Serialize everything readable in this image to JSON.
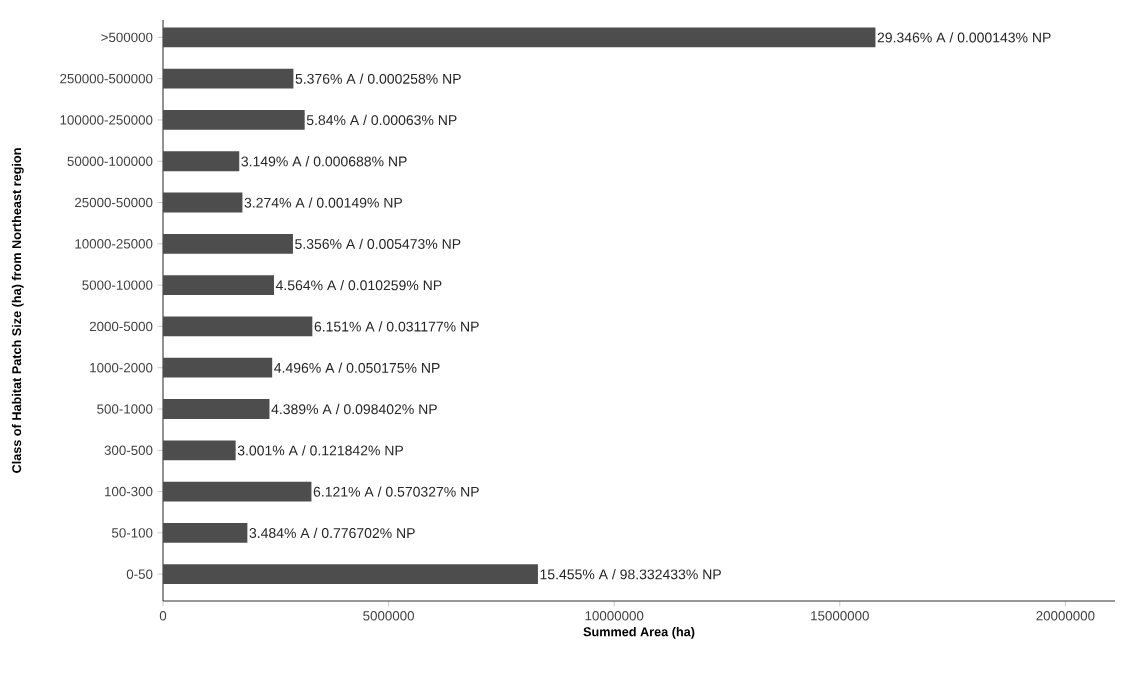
{
  "chart_data": {
    "type": "bar",
    "orientation": "horizontal",
    "xlabel": "Summed Area (ha)",
    "ylabel": "Class of Habitat Patch Size (ha) from Northeast region",
    "categories": [
      ">500000",
      "250000-500000",
      "100000-250000",
      "50000-100000",
      "25000-50000",
      "10000-25000",
      "5000-10000",
      "2000-5000",
      "1000-2000",
      "500-1000",
      "300-500",
      "100-300",
      "50-100",
      "0-50"
    ],
    "values": [
      15790000,
      2890000,
      3140000,
      1690000,
      1760000,
      2880000,
      2460000,
      3310000,
      2420000,
      2360000,
      1610000,
      3290000,
      1870000,
      8310000
    ],
    "annotations": [
      {
        "text": "29.346% A / 0.000143% NP",
        "x": 15790000,
        "y": ">500000"
      },
      {
        "text": "5.376% A / 0.000258% NP",
        "x": 2890000,
        "y": "250000-500000"
      },
      {
        "text": "5.84% A / 0.00063% NP",
        "x": 3140000,
        "y": "100000-250000"
      },
      {
        "text": "3.149% A / 0.000688% NP",
        "x": 1690000,
        "y": "50000-100000"
      },
      {
        "text": "3.274% A / 0.00149% NP",
        "x": 1760000,
        "y": "25000-50000"
      },
      {
        "text": "5.356% A / 0.005473% NP",
        "x": 2880000,
        "y": "10000-25000"
      },
      {
        "text": "4.564% A / 0.010259% NP",
        "x": 2460000,
        "y": "5000-10000"
      },
      {
        "text": "6.151% A / 0.031177% NP",
        "x": 3310000,
        "y": "2000-5000"
      },
      {
        "text": "4.496% A / 0.050175% NP",
        "x": 2420000,
        "y": "1000-2000"
      },
      {
        "text": "4.389% A / 0.098402% NP",
        "x": 2360000,
        "y": "500-1000"
      },
      {
        "text": "3.001% A / 0.121842% NP",
        "x": 1610000,
        "y": "300-500"
      },
      {
        "text": "6.121% A / 0.570327% NP",
        "x": 3290000,
        "y": "100-300"
      },
      {
        "text": "3.484% A / 0.776702% NP",
        "x": 1870000,
        "y": "50-100"
      },
      {
        "text": "15.455% A / 98.332433% NP",
        "x": 8310000,
        "y": "0-50"
      }
    ],
    "color": "#4d4d4d",
    "xlim": [
      0,
      21100000
    ],
    "xticks": [
      0,
      5000000,
      10000000,
      15000000,
      20000000
    ]
  }
}
